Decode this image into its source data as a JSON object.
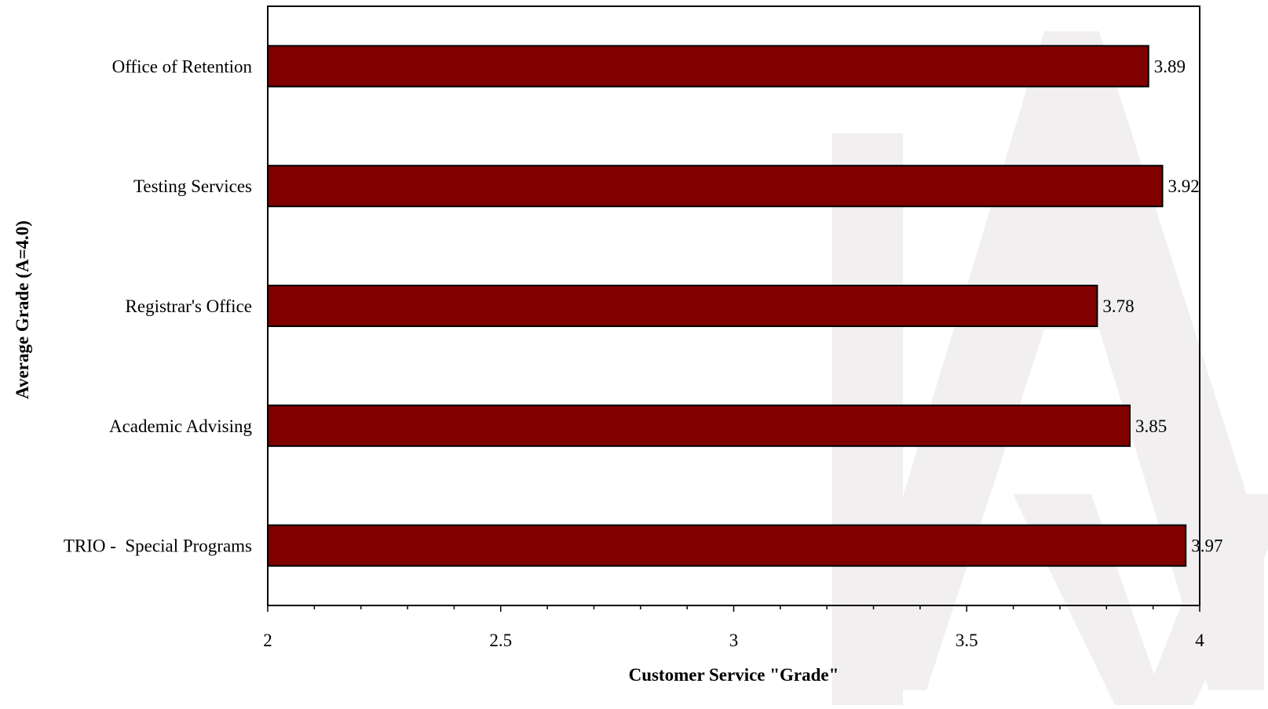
{
  "chart_data": {
    "type": "bar",
    "orientation": "horizontal",
    "categories": [
      "Office of Retention",
      "Testing Services",
      "Registrar's Office",
      "Academic Advising",
      "TRIO -  Special Programs"
    ],
    "values": [
      3.89,
      3.92,
      3.78,
      3.85,
      3.97
    ],
    "data_labels": [
      "3.89",
      "3.92",
      "3.78",
      "3.85",
      "3.97"
    ],
    "xlabel": "Customer Service \"Grade\"",
    "ylabel": "Average Grade (A=4.0)",
    "xlim": [
      2,
      4
    ],
    "xticks": [
      2,
      2.5,
      3,
      3.5,
      4
    ],
    "xtick_labels": [
      "2",
      "2.5",
      "3",
      "3.5",
      "4"
    ],
    "grid": false,
    "legend": "none",
    "bar_color": "#800000",
    "bar_outline_color": "#000000",
    "watermark_color": "#f1efef"
  }
}
